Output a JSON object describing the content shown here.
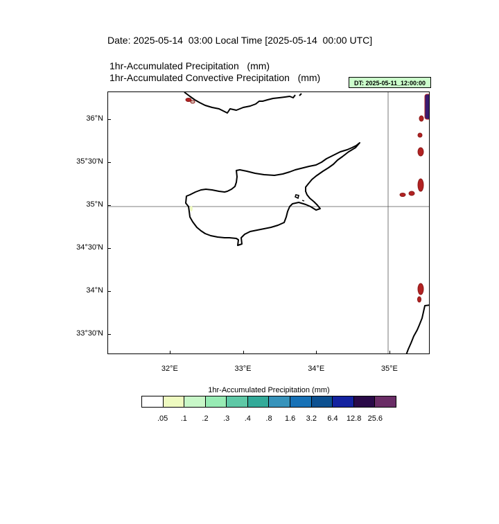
{
  "header": {
    "date_line": "Date: 2025-05-14  03:00 Local Time [2025-05-14  00:00 UTC]",
    "variable_line_1": "1hr-Accumulated Precipitation   (mm)",
    "variable_line_2": "1hr-Accumulated Convective Precipitation   (mm)",
    "dt_label": "DT: 2025-05-11_12:00:00",
    "dt_bg_color": "#ccffcc"
  },
  "map": {
    "lon_range": [
      31.15,
      35.55
    ],
    "lat_range": [
      33.27,
      36.32
    ],
    "lon_ticks": [
      {
        "value": 32,
        "label": "32°E"
      },
      {
        "value": 33,
        "label": "33°E"
      },
      {
        "value": 34,
        "label": "34°E"
      },
      {
        "value": 35,
        "label": "35°E"
      }
    ],
    "lat_ticks": [
      {
        "value": 36.0,
        "label": "36°N"
      },
      {
        "value": 35.5,
        "label": "35°30'N"
      },
      {
        "value": 35.0,
        "label": "35°N"
      },
      {
        "value": 34.5,
        "label": "34°30'N"
      },
      {
        "value": 34.0,
        "label": "34°N"
      },
      {
        "value": 33.5,
        "label": "33°30'N"
      }
    ],
    "gridlines": {
      "meridian": 35,
      "parallel": 35
    },
    "coast_color": "#000000",
    "convective_color": "#b22222"
  },
  "colorbar": {
    "title": "1hr-Accumulated Precipitation  (mm)",
    "colors": [
      "#ffffff",
      "#eefac0",
      "#c8f7c8",
      "#97ebb4",
      "#5ec8a6",
      "#33aa99",
      "#3793bb",
      "#1771b6",
      "#0c5090",
      "#1423a0",
      "#2a0a48",
      "#6a2d66"
    ],
    "labels": [
      ".05",
      ".1",
      ".2",
      ".3",
      ".4",
      ".8",
      "1.6",
      "3.2",
      "6.4",
      "12.8",
      "25.6"
    ]
  }
}
